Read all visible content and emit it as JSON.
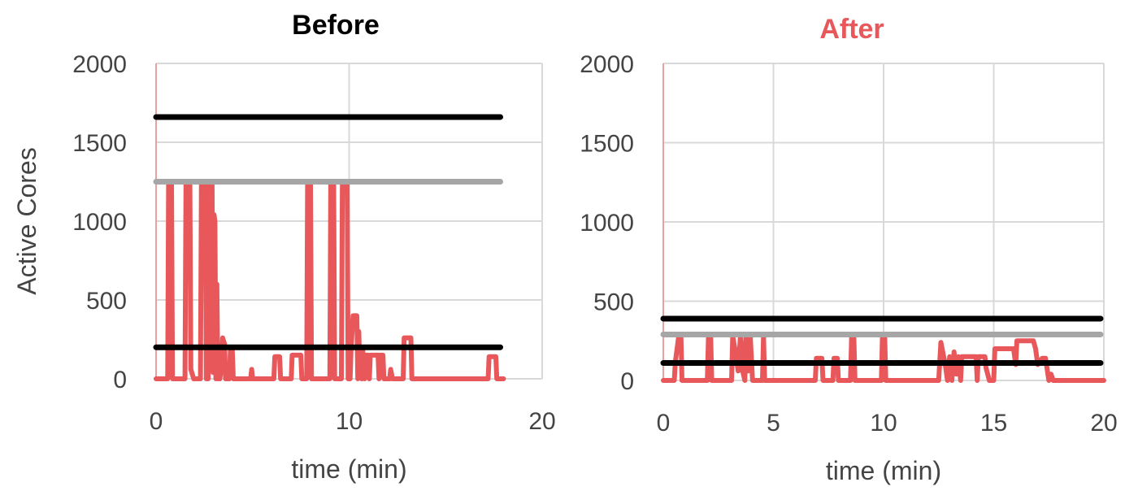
{
  "chart_data": [
    {
      "type": "line",
      "title": "Before",
      "title_color": "#000000",
      "xlabel": "time (min)",
      "ylabel": "Active Cores",
      "xlim": [
        0,
        20
      ],
      "ylim": [
        0,
        2000
      ],
      "xticks": [
        0,
        10,
        20
      ],
      "yticks": [
        0,
        500,
        1000,
        1500,
        2000
      ],
      "grid": true,
      "series": [
        {
          "color": "#e8575a",
          "points": [
            [
              0.0,
              0
            ],
            [
              0.6,
              0
            ],
            [
              0.65,
              1240
            ],
            [
              0.8,
              1240
            ],
            [
              0.85,
              0
            ],
            [
              1.5,
              0
            ],
            [
              1.55,
              1240
            ],
            [
              1.75,
              1240
            ],
            [
              1.8,
              60
            ],
            [
              1.95,
              0
            ],
            [
              2.0,
              0
            ],
            [
              2.3,
              0
            ],
            [
              2.35,
              1240
            ],
            [
              2.55,
              1240
            ],
            [
              2.6,
              0
            ],
            [
              2.7,
              0
            ],
            [
              2.75,
              1240
            ],
            [
              2.9,
              1240
            ],
            [
              2.95,
              40
            ],
            [
              3.0,
              1040
            ],
            [
              3.05,
              1000
            ],
            [
              3.1,
              0
            ],
            [
              3.15,
              600
            ],
            [
              3.2,
              0
            ],
            [
              3.3,
              0
            ],
            [
              3.35,
              40
            ],
            [
              3.45,
              260
            ],
            [
              3.55,
              220
            ],
            [
              3.6,
              0
            ],
            [
              3.8,
              0
            ],
            [
              3.85,
              180
            ],
            [
              3.95,
              180
            ],
            [
              4.0,
              0
            ],
            [
              4.9,
              0
            ],
            [
              4.95,
              60
            ],
            [
              5.0,
              0
            ],
            [
              6.1,
              0
            ],
            [
              6.15,
              140
            ],
            [
              6.4,
              140
            ],
            [
              6.45,
              0
            ],
            [
              7.0,
              0
            ],
            [
              7.05,
              150
            ],
            [
              7.5,
              150
            ],
            [
              7.55,
              0
            ],
            [
              7.8,
              0
            ],
            [
              7.85,
              1240
            ],
            [
              8.0,
              1240
            ],
            [
              8.05,
              0
            ],
            [
              9.0,
              0
            ],
            [
              9.05,
              1240
            ],
            [
              9.2,
              1240
            ],
            [
              9.25,
              0
            ],
            [
              9.6,
              0
            ],
            [
              9.65,
              1240
            ],
            [
              9.9,
              1240
            ],
            [
              9.95,
              0
            ],
            [
              10.05,
              0
            ],
            [
              10.1,
              190
            ],
            [
              10.2,
              400
            ],
            [
              10.4,
              400
            ],
            [
              10.45,
              0
            ],
            [
              10.5,
              300
            ],
            [
              10.55,
              60
            ],
            [
              10.65,
              0
            ],
            [
              10.7,
              190
            ],
            [
              10.8,
              0
            ],
            [
              10.85,
              150
            ],
            [
              11.0,
              150
            ],
            [
              11.05,
              0
            ],
            [
              11.1,
              150
            ],
            [
              11.5,
              150
            ],
            [
              11.55,
              0
            ],
            [
              11.6,
              150
            ],
            [
              11.75,
              150
            ],
            [
              11.8,
              0
            ],
            [
              12.1,
              0
            ],
            [
              12.15,
              60
            ],
            [
              12.25,
              0
            ],
            [
              12.8,
              0
            ],
            [
              12.85,
              260
            ],
            [
              13.2,
              260
            ],
            [
              13.25,
              0
            ],
            [
              17.2,
              0
            ],
            [
              17.25,
              140
            ],
            [
              17.6,
              140
            ],
            [
              17.65,
              0
            ],
            [
              18.0,
              0
            ]
          ]
        }
      ],
      "reference_lines": [
        {
          "y": 1660,
          "color": "#000000",
          "x_end": 18.0
        },
        {
          "y": 1250,
          "color": "#a6a6a6",
          "x_end": 18.0
        },
        {
          "y": 200,
          "color": "#000000",
          "x_end": 18.0
        }
      ]
    },
    {
      "type": "line",
      "title": "After",
      "title_color": "#e8575a",
      "xlabel": "time (min)",
      "ylabel": "",
      "xlim": [
        0,
        20
      ],
      "ylim": [
        0,
        2000
      ],
      "xticks": [
        0,
        5,
        10,
        15,
        20
      ],
      "yticks": [
        0,
        500,
        1000,
        1500,
        2000
      ],
      "grid": true,
      "series": [
        {
          "color": "#e8575a",
          "points": [
            [
              0.0,
              0
            ],
            [
              0.5,
              0
            ],
            [
              0.55,
              120
            ],
            [
              0.7,
              280
            ],
            [
              0.8,
              280
            ],
            [
              0.85,
              0
            ],
            [
              2.0,
              0
            ],
            [
              2.05,
              280
            ],
            [
              2.15,
              280
            ],
            [
              2.2,
              0
            ],
            [
              3.1,
              0
            ],
            [
              3.15,
              280
            ],
            [
              3.3,
              160
            ],
            [
              3.4,
              60
            ],
            [
              3.5,
              280
            ],
            [
              3.6,
              60
            ],
            [
              3.7,
              0
            ],
            [
              3.75,
              280
            ],
            [
              3.85,
              60
            ],
            [
              3.95,
              280
            ],
            [
              4.05,
              0
            ],
            [
              4.5,
              0
            ],
            [
              4.55,
              280
            ],
            [
              4.6,
              0
            ],
            [
              6.9,
              0
            ],
            [
              6.95,
              140
            ],
            [
              7.2,
              140
            ],
            [
              7.25,
              0
            ],
            [
              7.7,
              0
            ],
            [
              7.75,
              140
            ],
            [
              7.9,
              140
            ],
            [
              7.95,
              0
            ],
            [
              8.5,
              0
            ],
            [
              8.55,
              280
            ],
            [
              8.65,
              280
            ],
            [
              8.7,
              0
            ],
            [
              9.9,
              0
            ],
            [
              9.95,
              280
            ],
            [
              10.05,
              280
            ],
            [
              10.1,
              0
            ],
            [
              12.5,
              0
            ],
            [
              12.6,
              240
            ],
            [
              12.8,
              100
            ],
            [
              12.9,
              0
            ],
            [
              13.0,
              150
            ],
            [
              13.1,
              0
            ],
            [
              13.2,
              180
            ],
            [
              13.3,
              40
            ],
            [
              13.4,
              150
            ],
            [
              13.5,
              0
            ],
            [
              13.55,
              150
            ],
            [
              14.2,
              150
            ],
            [
              14.25,
              0
            ],
            [
              14.3,
              150
            ],
            [
              14.6,
              150
            ],
            [
              14.65,
              80
            ],
            [
              14.8,
              0
            ],
            [
              15.0,
              0
            ],
            [
              15.05,
              200
            ],
            [
              15.9,
              200
            ],
            [
              16.0,
              100
            ],
            [
              16.05,
              250
            ],
            [
              16.8,
              250
            ],
            [
              16.9,
              200
            ],
            [
              17.0,
              100
            ],
            [
              17.2,
              140
            ],
            [
              17.35,
              140
            ],
            [
              17.5,
              0
            ],
            [
              17.6,
              40
            ],
            [
              17.7,
              0
            ],
            [
              20.0,
              0
            ]
          ]
        }
      ],
      "reference_lines": [
        {
          "y": 390,
          "color": "#000000",
          "x_end": 20.0
        },
        {
          "y": 290,
          "color": "#a6a6a6",
          "x_end": 20.0
        },
        {
          "y": 110,
          "color": "#000000",
          "x_end": 20.0
        }
      ]
    }
  ],
  "colors": {
    "grid": "#d9d9d9",
    "axis": "#e8a0a0",
    "tick_text": "#444444"
  }
}
